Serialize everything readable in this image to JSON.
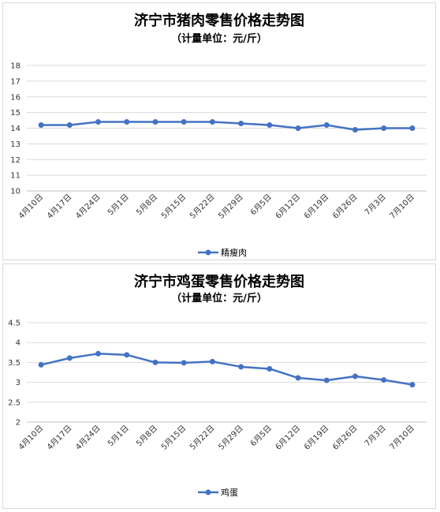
{
  "chart_data": [
    {
      "type": "line",
      "title": "济宁市猪肉零售价格走势图",
      "subtitle": "（计量单位：元/斤）",
      "categories": [
        "4月10日",
        "4月17日",
        "4月24日",
        "5月1日",
        "5月8日",
        "5月15日",
        "5月22日",
        "5月29日",
        "6月5日",
        "6月12日",
        "6月19日",
        "6月26日",
        "7月3日",
        "7月10日"
      ],
      "series": [
        {
          "name": "精瘦肉",
          "values": [
            14.2,
            14.2,
            14.4,
            14.4,
            14.4,
            14.4,
            14.4,
            14.3,
            14.2,
            14.0,
            14.2,
            13.9,
            14.0,
            14.0
          ]
        }
      ],
      "ylim": [
        10,
        18
      ],
      "yticks": [
        10,
        11,
        12,
        13,
        14,
        15,
        16,
        17,
        18
      ],
      "grid": true,
      "legend": "bottom",
      "color": "#4472c4"
    },
    {
      "type": "line",
      "title": "济宁市鸡蛋零售价格走势图",
      "subtitle": "（计量单位：元/斤）",
      "categories": [
        "4月10日",
        "4月17日",
        "4月24日",
        "5月1日",
        "5月8日",
        "5月15日",
        "5月22日",
        "5月29日",
        "6月5日",
        "6月12日",
        "6月19日",
        "6月26日",
        "7月3日",
        "7月10日"
      ],
      "series": [
        {
          "name": "鸡蛋",
          "values": [
            3.44,
            3.61,
            3.72,
            3.69,
            3.5,
            3.49,
            3.52,
            3.39,
            3.34,
            3.11,
            3.05,
            3.15,
            3.06,
            2.94
          ]
        }
      ],
      "ylim": [
        2,
        4.5
      ],
      "yticks": [
        2,
        2.5,
        3,
        3.5,
        4,
        4.5
      ],
      "grid": true,
      "legend": "bottom",
      "color": "#4472c4"
    }
  ]
}
